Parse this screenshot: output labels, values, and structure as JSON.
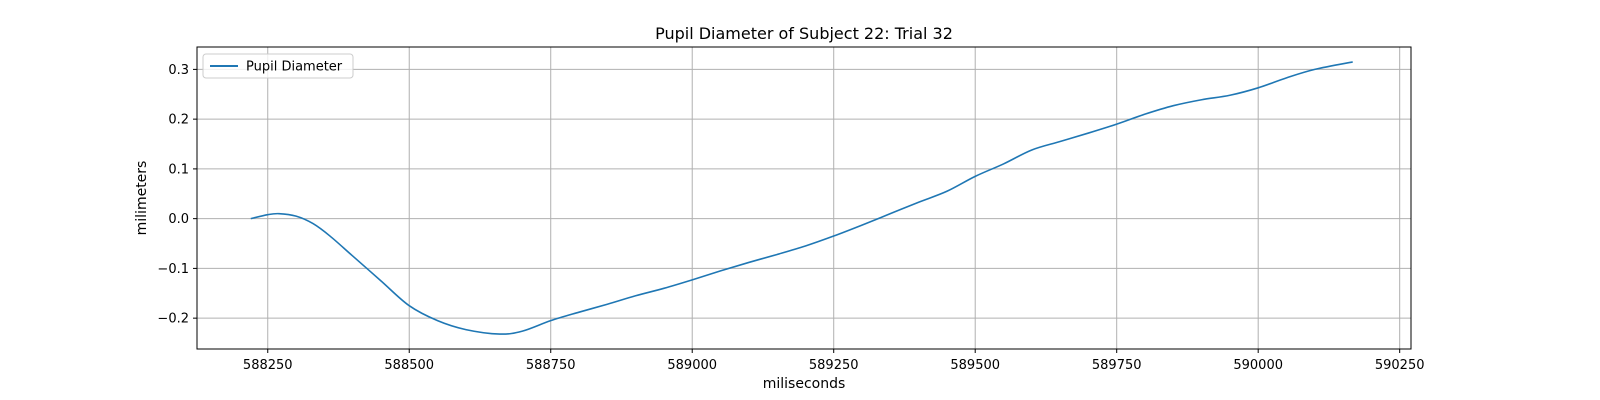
{
  "chart_data": {
    "type": "line",
    "title": "Pupil Diameter of Subject 22: Trial 32",
    "xlabel": "miliseconds",
    "ylabel": "milimeters",
    "xlim": [
      588125,
      590270
    ],
    "ylim": [
      -0.262,
      0.345
    ],
    "xticks": [
      588250,
      588500,
      588750,
      589000,
      589250,
      589500,
      589750,
      590000,
      590250
    ],
    "xtick_labels": [
      "588250",
      "588500",
      "588750",
      "589000",
      "589250",
      "589500",
      "589750",
      "590000",
      "590250"
    ],
    "yticks": [
      -0.2,
      -0.1,
      0.0,
      0.1,
      0.2,
      0.3
    ],
    "ytick_labels": [
      "−0.2",
      "−0.1",
      "0.0",
      "0.1",
      "0.2",
      "0.3"
    ],
    "grid": true,
    "legend_position": "upper-left",
    "series": [
      {
        "name": "Pupil Diameter",
        "color": "#1f77b4",
        "x": [
          588220,
          588250,
          588270,
          588300,
          588330,
          588360,
          588400,
          588450,
          588500,
          588550,
          588600,
          588660,
          588700,
          588750,
          588800,
          588850,
          588900,
          588950,
          589000,
          589050,
          589100,
          589150,
          589200,
          589250,
          589300,
          589350,
          589400,
          589450,
          589500,
          589550,
          589600,
          589650,
          589700,
          589750,
          589800,
          589850,
          589900,
          589950,
          590000,
          590050,
          590100,
          590167
        ],
        "y": [
          0.0,
          0.008,
          0.01,
          0.005,
          -0.01,
          -0.035,
          -0.075,
          -0.125,
          -0.175,
          -0.205,
          -0.223,
          -0.232,
          -0.226,
          -0.205,
          -0.188,
          -0.172,
          -0.155,
          -0.14,
          -0.123,
          -0.105,
          -0.088,
          -0.072,
          -0.055,
          -0.035,
          -0.013,
          0.01,
          0.033,
          0.055,
          0.085,
          0.11,
          0.138,
          0.155,
          0.172,
          0.19,
          0.21,
          0.227,
          0.239,
          0.248,
          0.263,
          0.283,
          0.3,
          0.315
        ]
      }
    ]
  }
}
